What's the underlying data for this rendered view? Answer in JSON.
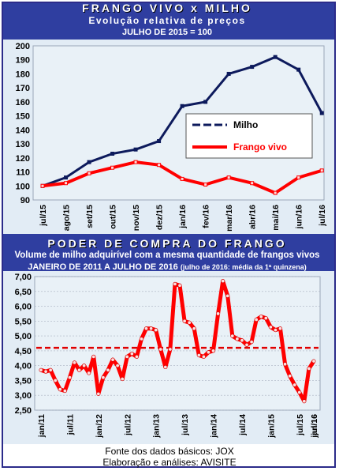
{
  "chart1_header": {
    "title": "FRANGO VIVO x MILHO",
    "subtitle": "Evolução relativa de preços",
    "base": "JULHO DE 2015 = 100"
  },
  "chart2_header": {
    "title": "PODER DE COMPRA DO FRANGO",
    "subtitle": "Volume de milho adquirível com a mesma quantidade de frangos vivos",
    "period": "JANEIRO DE 2011 A JULHO DE 2016",
    "note": "(julho de 2016: média da 1ª quinzena)"
  },
  "footer": {
    "source": "Fonte dos dados básicos: JOX",
    "credit": "Elaboração e análises: AVISITE"
  },
  "colors": {
    "milho": "#0d1a5c",
    "frango": "#ff0000",
    "plot_bg": "#e7f0f6",
    "frame": "#2f3ea0",
    "average_line": "#e00000"
  },
  "chart_data": [
    {
      "type": "line",
      "ylim": [
        90,
        200
      ],
      "yticks": [
        90,
        100,
        110,
        120,
        130,
        140,
        150,
        160,
        170,
        180,
        190,
        200
      ],
      "categories": [
        "jul/15",
        "ago/15",
        "set/15",
        "out/15",
        "nov/15",
        "dez/15",
        "jan/16",
        "fev/16",
        "mar/16",
        "abr/16",
        "mai/16",
        "jun/16",
        "jul/16"
      ],
      "legend_position": "center-right",
      "grid": false,
      "series": [
        {
          "name": "Milho",
          "color": "#0d1a5c",
          "values": [
            100,
            106,
            117,
            123,
            126,
            132,
            157,
            160,
            180,
            185,
            192,
            183,
            152
          ]
        },
        {
          "name": "Frango vivo",
          "color": "#ff0000",
          "values": [
            100,
            102,
            109,
            113,
            117,
            115,
            105,
            101,
            106,
            102,
            95,
            106,
            111
          ]
        }
      ]
    },
    {
      "type": "line",
      "ylim": [
        2.5,
        7.0
      ],
      "yticks": [
        "2,50",
        "3,00",
        "3,50",
        "4,00",
        "4,50",
        "5,00",
        "5,50",
        "6,00",
        "6,50",
        "7,00"
      ],
      "tick_labels": [
        "jan/11",
        "jul/11",
        "jan/12",
        "jul/12",
        "jan/13",
        "jul/13",
        "jan/14",
        "jul/14",
        "jan/15",
        "jul/15",
        "jan/16",
        "jul/16"
      ],
      "average": 4.6,
      "series": [
        {
          "values": [
            3.85,
            3.8,
            3.85,
            3.5,
            3.2,
            3.15,
            3.6,
            4.1,
            3.85,
            4.0,
            3.75,
            4.3,
            3.05,
            3.6,
            3.85,
            4.2,
            4.0,
            3.55,
            4.3,
            4.4,
            4.3,
            4.9,
            5.25,
            5.25,
            5.2,
            4.55,
            3.95,
            4.55,
            6.75,
            6.7,
            5.5,
            5.45,
            5.25,
            4.35,
            4.3,
            4.45,
            4.5,
            5.75,
            6.85,
            6.35,
            5.0,
            4.9,
            4.85,
            4.7,
            4.8,
            5.55,
            5.65,
            5.6,
            5.3,
            5.2,
            5.25,
            4.05,
            3.65,
            3.35,
            3.1,
            2.8,
            3.9,
            4.15
          ]
        }
      ]
    }
  ]
}
